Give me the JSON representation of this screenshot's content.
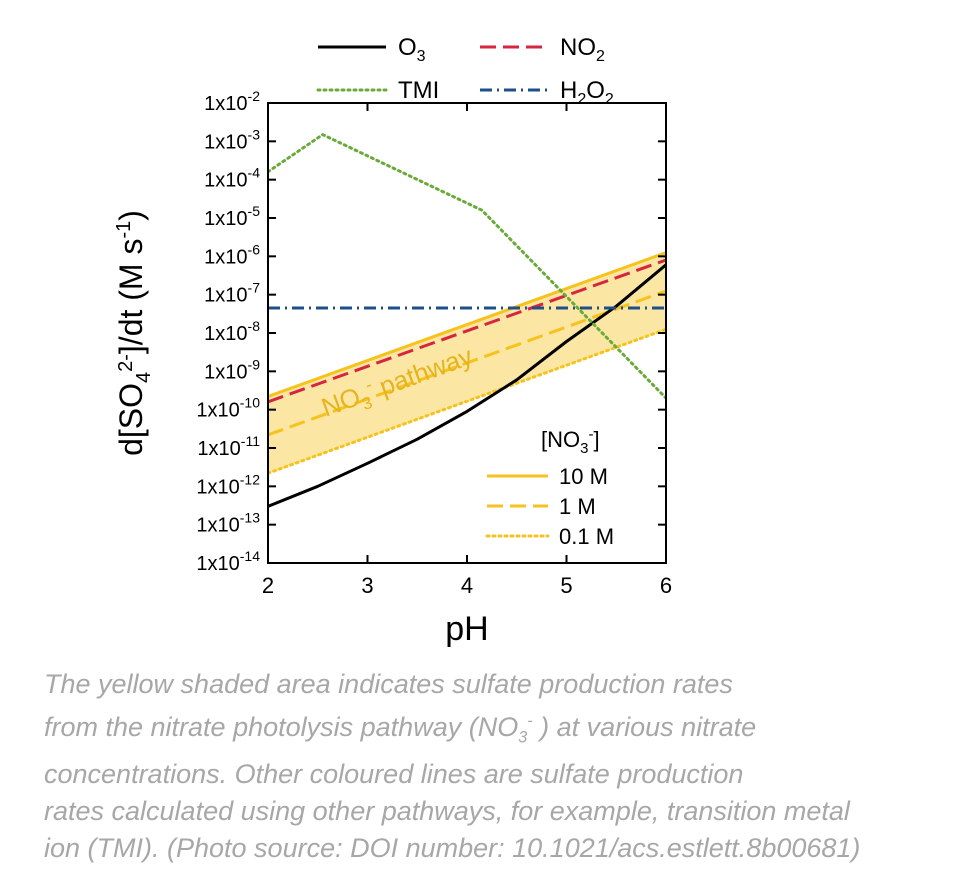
{
  "chart_data": {
    "type": "line",
    "xlabel": "pH",
    "ylabel": "d[SO4 2-]/dt (M s-1)",
    "x_range": [
      2,
      6
    ],
    "y_range": [
      1e-14,
      0.01
    ],
    "y_scale": "log",
    "x_ticks": [
      "2",
      "3",
      "4",
      "5",
      "6"
    ],
    "y_ticks": [
      {
        "base": "1x10",
        "exp": "-2"
      },
      {
        "base": "1x10",
        "exp": "-3"
      },
      {
        "base": "1x10",
        "exp": "-4"
      },
      {
        "base": "1x10",
        "exp": "-5"
      },
      {
        "base": "1x10",
        "exp": "-6"
      },
      {
        "base": "1x10",
        "exp": "-7"
      },
      {
        "base": "1x10",
        "exp": "-8"
      },
      {
        "base": "1x10",
        "exp": "-9"
      },
      {
        "base": "1x10",
        "exp": "-10"
      },
      {
        "base": "1x10",
        "exp": "-11"
      },
      {
        "base": "1x10",
        "exp": "-12"
      },
      {
        "base": "1x10",
        "exp": "-13"
      },
      {
        "base": "1x10",
        "exp": "-14"
      }
    ],
    "series": [
      {
        "name": "O3",
        "color": "#000000",
        "style": "solid",
        "x": [
          2,
          2.5,
          3,
          3.5,
          4,
          4.5,
          5,
          5.5,
          6
        ],
        "y": [
          3e-13,
          1e-12,
          4e-12,
          1.7e-11,
          9e-11,
          6e-10,
          6e-09,
          5e-08,
          6e-07
        ]
      },
      {
        "name": "NO2",
        "color": "#d8253f",
        "style": "dashed",
        "x": [
          2,
          6
        ],
        "y": [
          1.6e-10,
          8e-07
        ]
      },
      {
        "name": "TMI",
        "color": "#6aaa3a",
        "style": "dotted",
        "x": [
          2,
          2.55,
          4.15,
          6
        ],
        "y": [
          0.00016,
          0.0015,
          1.6e-05,
          2e-10
        ]
      },
      {
        "name": "H2O2",
        "color": "#1c4f8c",
        "style": "dashdot",
        "x": [
          2,
          6
        ],
        "y": [
          4.5e-08,
          4.5e-08
        ]
      }
    ],
    "nitrate_series": [
      {
        "name": "10 M",
        "color": "#f6c21c",
        "style": "solid",
        "x": [
          2,
          6
        ],
        "y": [
          2.2e-10,
          1.25e-06
        ]
      },
      {
        "name": "1 M",
        "color": "#f6c21c",
        "style": "dashed",
        "x": [
          2,
          6
        ],
        "y": [
          2.2e-11,
          1.25e-07
        ]
      },
      {
        "name": "0.1 M",
        "color": "#f6c21c",
        "style": "dotted",
        "x": [
          2,
          6
        ],
        "y": [
          2.2e-12,
          1.25e-08
        ]
      }
    ],
    "shaded_region": {
      "between": [
        "10 M",
        "0.1 M"
      ],
      "color": "#fbe6a4"
    },
    "annotation": {
      "text": "NO3- pathway",
      "color": "#e7b41d"
    },
    "legend_title": "[NO3-]",
    "legend_main": [
      "O3",
      "NO2",
      "TMI",
      "H2O2"
    ],
    "legend_placement": "top (main) and bottom-right ([NO3-])",
    "grid": false
  },
  "caption": {
    "lines": [
      "The yellow shaded area indicates sulfate production rates",
      "from the nitrate photolysis pathway (NO3- ) at various nitrate",
      "concentrations. Other coloured lines are sulfate production",
      "rates calculated using other pathways, for example, transition metal",
      "ion (TMI). (Photo source: DOI number: 10.1021/acs.estlett.8b00681)"
    ]
  }
}
